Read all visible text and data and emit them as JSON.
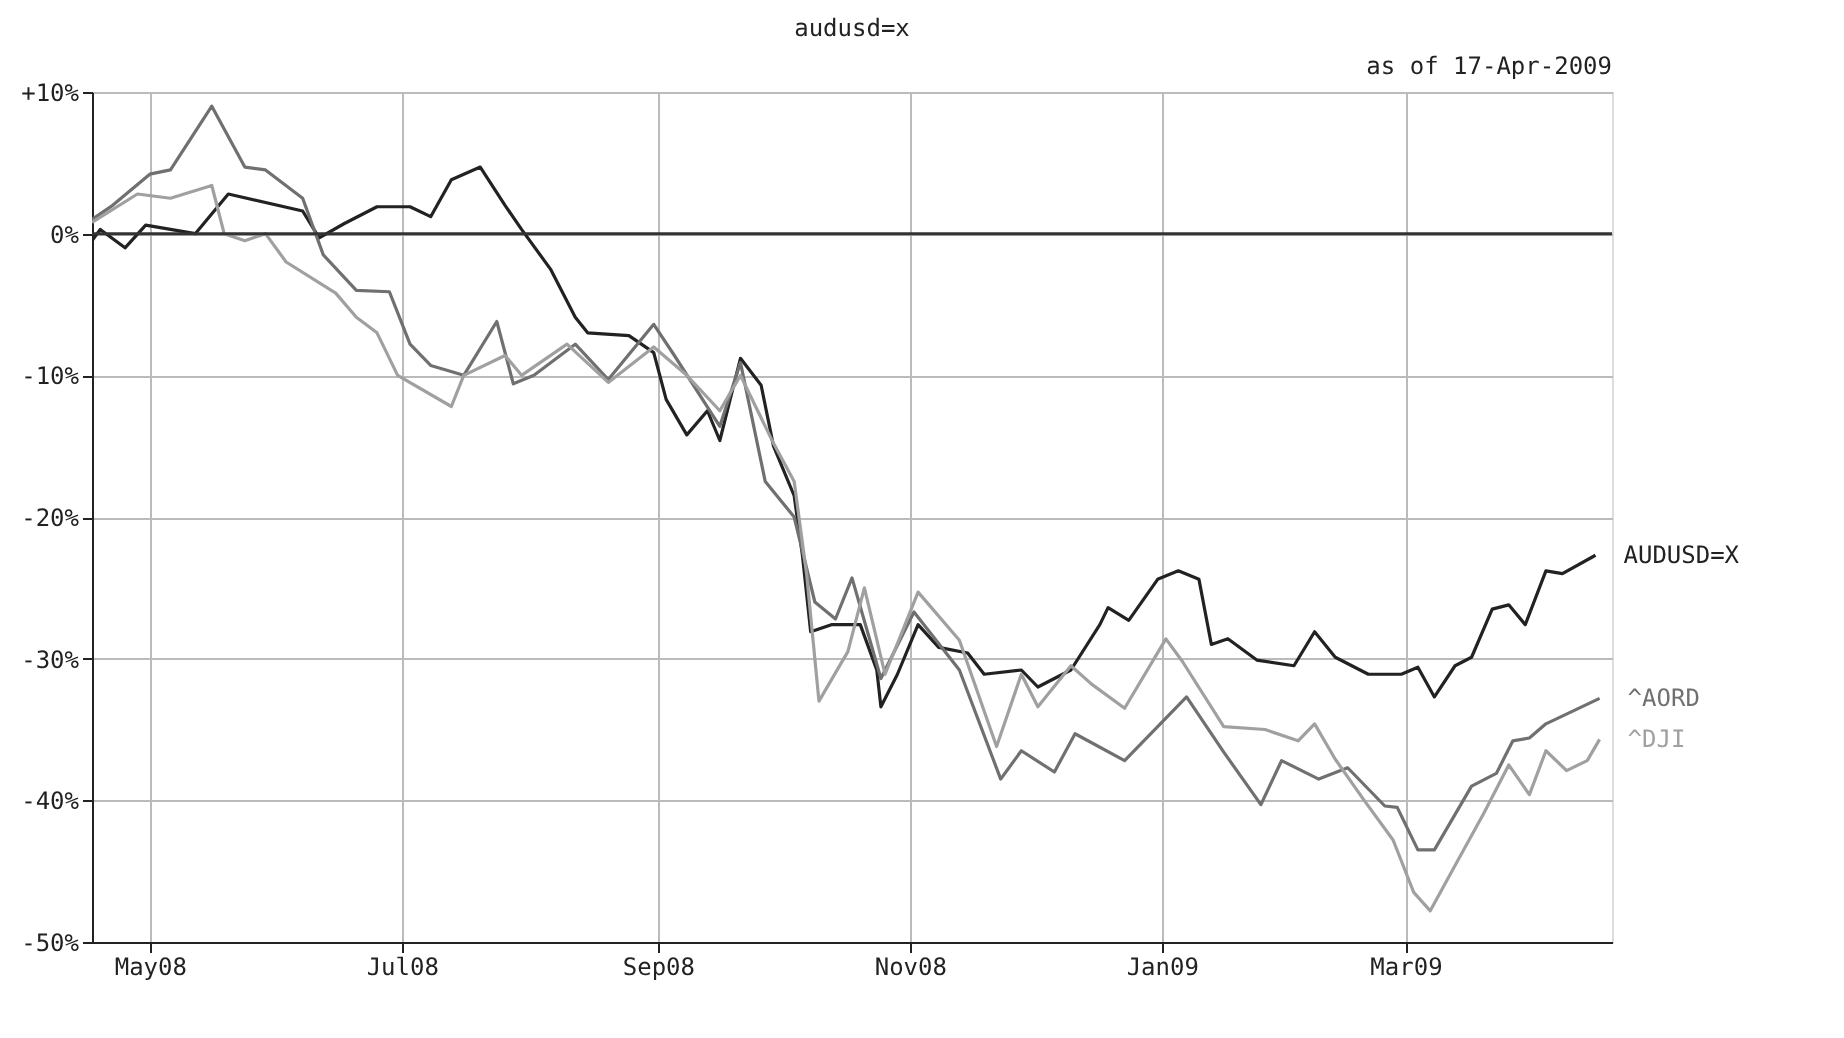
{
  "chart_data": {
    "type": "line",
    "title": "audusd=x",
    "annotations": [
      "as of 17-Apr-2009"
    ],
    "xlim": [
      "2008-04-17",
      "2009-04-20"
    ],
    "xticks": [
      {
        "value": "2008-05-01",
        "label": "May08"
      },
      {
        "value": "2008-07-01",
        "label": "Jul08"
      },
      {
        "value": "2008-09-01",
        "label": "Sep08"
      },
      {
        "value": "2008-11-01",
        "label": "Nov08"
      },
      {
        "value": "2009-01-01",
        "label": "Jan09"
      },
      {
        "value": "2009-03-01",
        "label": "Mar09"
      }
    ],
    "ylim": [
      -50,
      10
    ],
    "yticks": [
      {
        "value": 10,
        "label": "+10%"
      },
      {
        "value": 0,
        "label": "0%"
      },
      {
        "value": -10,
        "label": "-10%"
      },
      {
        "value": -20,
        "label": "-20%"
      },
      {
        "value": -30,
        "label": "-30%"
      },
      {
        "value": -40,
        "label": "-40%"
      },
      {
        "value": -50,
        "label": "-50%"
      }
    ],
    "grid": true,
    "legend": false,
    "line_style": "solid",
    "ref_lines": [
      {
        "axis": "y",
        "value": 0,
        "color": "#333333"
      }
    ],
    "series": [
      {
        "name": "AUDUSD=X",
        "color": "#222222",
        "x": [
          "2008-04-17",
          "2008-04-19",
          "2008-04-25",
          "2008-04-30",
          "2008-05-12",
          "2008-05-20",
          "2008-06-07",
          "2008-06-11",
          "2008-06-17",
          "2008-06-25",
          "2008-07-03",
          "2008-07-08",
          "2008-07-13",
          "2008-07-20",
          "2008-07-26",
          "2008-07-30",
          "2008-08-06",
          "2008-08-12",
          "2008-08-15",
          "2008-08-25",
          "2008-08-31",
          "2008-09-03",
          "2008-09-08",
          "2008-09-13",
          "2008-09-16",
          "2008-09-21",
          "2008-09-26",
          "2008-09-29",
          "2008-10-04",
          "2008-10-06",
          "2008-10-08",
          "2008-10-13",
          "2008-10-20",
          "2008-10-24",
          "2008-10-25",
          "2008-10-29",
          "2008-11-03",
          "2008-11-08",
          "2008-11-15",
          "2008-11-19",
          "2008-11-28",
          "2008-12-02",
          "2008-12-10",
          "2008-12-17",
          "2008-12-19",
          "2008-12-24",
          "2008-12-31",
          "2009-01-05",
          "2009-01-10",
          "2009-01-13",
          "2009-01-17",
          "2009-01-24",
          "2009-02-02",
          "2009-02-07",
          "2009-02-12",
          "2009-02-20",
          "2009-02-28",
          "2009-03-04",
          "2009-03-08",
          "2009-03-13",
          "2009-03-17",
          "2009-03-22",
          "2009-03-26",
          "2009-03-30",
          "2009-04-04",
          "2009-04-08",
          "2009-04-16"
        ],
        "values": [
          -0.5,
          0.3,
          -1,
          0.6,
          0,
          2.8,
          1.6,
          -0.3,
          0.7,
          1.9,
          1.9,
          1.2,
          3.8,
          4.7,
          2,
          0.3,
          -2.5,
          -5.9,
          -7,
          -7.2,
          -8.4,
          -11.7,
          -14.2,
          -12.5,
          -14.6,
          -8.8,
          -10.7,
          -15,
          -18.5,
          -22.7,
          -28.1,
          -27.6,
          -27.6,
          -30.8,
          -33.4,
          -31.1,
          -27.6,
          -29.2,
          -29.6,
          -31.1,
          -30.8,
          -32,
          -30.8,
          -27.6,
          -26.4,
          -27.3,
          -24.4,
          -23.8,
          -24.4,
          -29,
          -28.6,
          -30.1,
          -30.5,
          -28.1,
          -29.9,
          -31.1,
          -31.1,
          -30.6,
          -32.7,
          -30.5,
          -29.9,
          -26.5,
          -26.2,
          -27.6,
          -23.8,
          -24,
          -22.7
        ]
      },
      {
        "name": "^AORD",
        "color": "#707070",
        "x": [
          "2008-04-17",
          "2008-04-22",
          "2008-05-01",
          "2008-05-06",
          "2008-05-16",
          "2008-05-24",
          "2008-05-29",
          "2008-06-07",
          "2008-06-12",
          "2008-06-20",
          "2008-06-28",
          "2008-07-03",
          "2008-07-08",
          "2008-07-16",
          "2008-07-24",
          "2008-07-28",
          "2008-08-02",
          "2008-08-12",
          "2008-08-20",
          "2008-08-31",
          "2008-09-05",
          "2008-09-16",
          "2008-09-21",
          "2008-09-27",
          "2008-10-04",
          "2008-10-09",
          "2008-10-14",
          "2008-10-18",
          "2008-10-25",
          "2008-11-02",
          "2008-11-13",
          "2008-11-23",
          "2008-11-28",
          "2008-12-06",
          "2008-12-11",
          "2008-12-23",
          "2009-01-07",
          "2009-01-16",
          "2009-01-25",
          "2009-01-30",
          "2009-02-08",
          "2009-02-15",
          "2009-02-24",
          "2009-02-27",
          "2009-03-04",
          "2009-03-08",
          "2009-03-17",
          "2009-03-23",
          "2009-03-27",
          "2009-03-31",
          "2009-04-04",
          "2009-04-17"
        ],
        "values": [
          1,
          2,
          4.2,
          4.5,
          9,
          4.7,
          4.5,
          2.5,
          -1.5,
          -4,
          -4.1,
          -7.8,
          -9.3,
          -10,
          -6.2,
          -10.6,
          -10,
          -7.8,
          -10.3,
          -6.4,
          -8.6,
          -13.6,
          -9.1,
          -17.5,
          -20,
          -26,
          -27.2,
          -24.3,
          -31.4,
          -26.7,
          -30.8,
          -38.5,
          -36.5,
          -38,
          -35.3,
          -37.2,
          -32.7,
          -36.6,
          -40.3,
          -37.2,
          -38.5,
          -37.7,
          -40.4,
          -40.5,
          -43.5,
          -43.5,
          -39,
          -38.1,
          -35.8,
          -35.6,
          -34.6,
          -32.8
        ]
      },
      {
        "name": "^DJI",
        "color": "#a0a0a0",
        "x": [
          "2008-04-17",
          "2008-04-28",
          "2008-05-06",
          "2008-05-16",
          "2008-05-19",
          "2008-05-24",
          "2008-05-29",
          "2008-06-03",
          "2008-06-15",
          "2008-06-20",
          "2008-06-25",
          "2008-06-30",
          "2008-07-13",
          "2008-07-16",
          "2008-07-26",
          "2008-07-30",
          "2008-08-10",
          "2008-08-20",
          "2008-08-31",
          "2008-09-08",
          "2008-09-16",
          "2008-09-21",
          "2008-09-29",
          "2008-10-04",
          "2008-10-07",
          "2008-10-10",
          "2008-10-17",
          "2008-10-21",
          "2008-10-26",
          "2008-11-03",
          "2008-11-13",
          "2008-11-22",
          "2008-11-28",
          "2008-12-02",
          "2008-12-10",
          "2008-12-15",
          "2008-12-23",
          "2009-01-02",
          "2009-01-06",
          "2009-01-16",
          "2009-01-26",
          "2009-02-03",
          "2009-02-07",
          "2009-02-12",
          "2009-02-19",
          "2009-02-26",
          "2009-03-03",
          "2009-03-07",
          "2009-03-13",
          "2009-03-20",
          "2009-03-26",
          "2009-03-31",
          "2009-04-04",
          "2009-04-09",
          "2009-04-14",
          "2009-04-17"
        ],
        "values": [
          0.8,
          2.8,
          2.5,
          3.4,
          0,
          -0.5,
          0,
          -2,
          -4.2,
          -5.9,
          -7,
          -10,
          -12.2,
          -10,
          -8.6,
          -10,
          -7.8,
          -10.5,
          -8,
          -10,
          -12.5,
          -10,
          -14.8,
          -17.5,
          -24,
          -33,
          -29.5,
          -25,
          -31.1,
          -25.3,
          -28.7,
          -36.2,
          -31.1,
          -33.4,
          -30.5,
          -31.8,
          -33.5,
          -28.6,
          -30.2,
          -34.8,
          -35,
          -35.8,
          -34.6,
          -37.1,
          -40,
          -42.8,
          -46.5,
          -47.8,
          -44.6,
          -40.9,
          -37.5,
          -39.6,
          -36.5,
          -37.9,
          -37.2,
          -35.7
        ]
      }
    ]
  }
}
